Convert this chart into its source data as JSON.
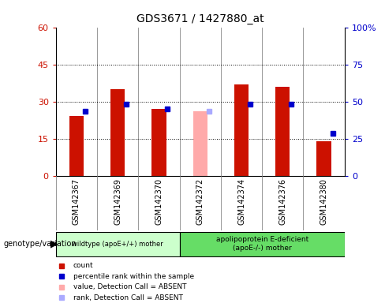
{
  "title": "GDS3671 / 1427880_at",
  "samples": [
    "GSM142367",
    "GSM142369",
    "GSM142370",
    "GSM142372",
    "GSM142374",
    "GSM142376",
    "GSM142380"
  ],
  "count_values": [
    24,
    35,
    27,
    null,
    37,
    36,
    14
  ],
  "percentile_values": [
    26,
    29,
    27,
    null,
    29,
    29,
    17
  ],
  "absent_value_values": [
    null,
    null,
    null,
    26,
    null,
    null,
    null
  ],
  "absent_rank_values": [
    null,
    null,
    null,
    26,
    null,
    null,
    null
  ],
  "count_color": "#cc1100",
  "percentile_color": "#0000cc",
  "absent_value_color": "#ffaaaa",
  "absent_rank_color": "#aaaaff",
  "ylim_left": [
    0,
    60
  ],
  "ylim_right": [
    0,
    100
  ],
  "yticks_left": [
    0,
    15,
    30,
    45,
    60
  ],
  "ytick_labels_left": [
    "0",
    "15",
    "30",
    "45",
    "60"
  ],
  "yticks_right": [
    0,
    25,
    50,
    75,
    100
  ],
  "ytick_labels_right": [
    "0",
    "25",
    "50",
    "75",
    "100%"
  ],
  "group1_label": "wildtype (apoE+/+) mother",
  "group2_label": "apolipoprotein E-deficient\n(apoE-/-) mother",
  "group1_color": "#ccffcc",
  "group2_color": "#66dd66",
  "genotype_label": "genotype/variation",
  "legend_items": [
    {
      "label": "count",
      "color": "#cc1100"
    },
    {
      "label": "percentile rank within the sample",
      "color": "#0000cc"
    },
    {
      "label": "value, Detection Call = ABSENT",
      "color": "#ffaaaa"
    },
    {
      "label": "rank, Detection Call = ABSENT",
      "color": "#aaaaff"
    }
  ],
  "bar_width": 0.35,
  "percentile_marker_size": 4,
  "plot_bg": "#ffffff",
  "tick_area_bg": "#d8d8d8",
  "separator_color": "#888888",
  "group_border_color": "#000000"
}
